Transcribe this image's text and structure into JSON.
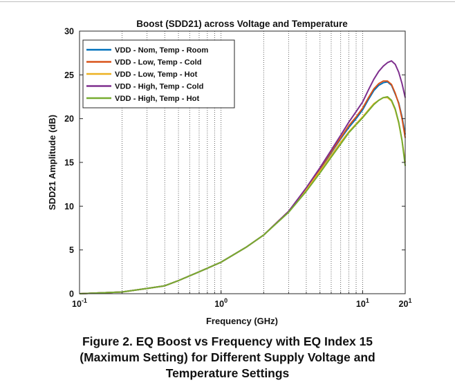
{
  "chart_data": {
    "type": "line",
    "title": "Boost (SDD21) across Voltage and Temperature",
    "xlabel": "Frequency (GHz)",
    "ylabel": "SDD21 Amplitude (dB)",
    "x_scale": "log",
    "xlim": [
      0.1,
      20
    ],
    "ylim": [
      0,
      30
    ],
    "grid": "x-minor-dotted",
    "legend_position": "top-left",
    "x_ticks": [
      {
        "base": "10",
        "exp": "-1"
      },
      {
        "base": "10",
        "exp": "0"
      },
      {
        "base": "10",
        "exp": "1"
      },
      {
        "base": "20",
        "exp": "1"
      }
    ],
    "y_ticks": [
      "0",
      "5",
      "10",
      "15",
      "20",
      "25",
      "30"
    ],
    "series": [
      {
        "name": "VDD - Nom, Temp - Room",
        "color": "#0072BD",
        "x": [
          0.1,
          0.2,
          0.3,
          0.4,
          0.5,
          0.7,
          1,
          1.5,
          2,
          3,
          4,
          5,
          6,
          7,
          8,
          9,
          10,
          11,
          12,
          13,
          14,
          15,
          16,
          17,
          18,
          19,
          20
        ],
        "y": [
          0.0,
          0.2,
          0.6,
          0.9,
          1.5,
          2.5,
          3.6,
          5.3,
          6.7,
          9.4,
          12.0,
          14.2,
          16.1,
          17.7,
          19.0,
          20.0,
          21.0,
          22.2,
          23.2,
          23.8,
          24.1,
          24.2,
          23.8,
          22.8,
          21.8,
          20.2,
          18.2
        ]
      },
      {
        "name": "VDD - Low, Temp - Cold",
        "color": "#D95319",
        "x": [
          0.1,
          0.2,
          0.3,
          0.4,
          0.5,
          0.7,
          1,
          1.5,
          2,
          3,
          4,
          5,
          6,
          7,
          8,
          9,
          10,
          11,
          12,
          13,
          14,
          15,
          16,
          17,
          18,
          19,
          20
        ],
        "y": [
          0.0,
          0.2,
          0.6,
          0.9,
          1.5,
          2.5,
          3.6,
          5.3,
          6.7,
          9.4,
          12.0,
          14.3,
          16.2,
          17.8,
          19.2,
          20.2,
          21.2,
          22.4,
          23.4,
          24.0,
          24.3,
          24.3,
          23.9,
          22.9,
          21.7,
          20.0,
          17.8
        ]
      },
      {
        "name": "VDD - Low, Temp - Hot",
        "color": "#EDB120",
        "x": [
          0.1,
          0.2,
          0.3,
          0.4,
          0.5,
          0.7,
          1,
          1.5,
          2,
          3,
          4,
          5,
          6,
          7,
          8,
          9,
          10,
          11,
          12,
          13,
          14,
          15,
          16,
          17,
          18,
          19,
          20
        ],
        "y": [
          0.0,
          0.2,
          0.6,
          0.9,
          1.5,
          2.5,
          3.6,
          5.3,
          6.7,
          9.4,
          11.9,
          14.0,
          15.8,
          17.3,
          18.5,
          19.4,
          20.2,
          21.0,
          21.7,
          22.1,
          22.4,
          22.4,
          22.0,
          21.0,
          19.5,
          17.5,
          15.0
        ]
      },
      {
        "name": "VDD - High, Temp - Cold",
        "color": "#7E2F8E",
        "x": [
          0.1,
          0.2,
          0.3,
          0.4,
          0.5,
          0.7,
          1,
          1.5,
          2,
          3,
          4,
          5,
          6,
          7,
          8,
          9,
          10,
          11,
          12,
          13,
          14,
          15,
          16,
          17,
          18,
          19,
          20
        ],
        "y": [
          0.0,
          0.2,
          0.6,
          0.9,
          1.5,
          2.5,
          3.6,
          5.3,
          6.7,
          9.4,
          12.1,
          14.4,
          16.4,
          18.1,
          19.6,
          20.8,
          21.9,
          23.3,
          24.5,
          25.4,
          26.0,
          26.4,
          26.6,
          26.2,
          25.3,
          24.0,
          22.4
        ]
      },
      {
        "name": "VDD - High, Temp - Hot",
        "color": "#77AC30",
        "x": [
          0.1,
          0.2,
          0.3,
          0.4,
          0.5,
          0.7,
          1,
          1.5,
          2,
          3,
          4,
          5,
          6,
          7,
          8,
          9,
          10,
          11,
          12,
          13,
          14,
          15,
          16,
          17,
          18,
          19,
          20
        ],
        "y": [
          0.0,
          0.2,
          0.6,
          0.9,
          1.5,
          2.5,
          3.6,
          5.3,
          6.7,
          9.3,
          11.7,
          13.8,
          15.6,
          17.1,
          18.4,
          19.3,
          20.1,
          20.9,
          21.6,
          22.1,
          22.4,
          22.5,
          22.1,
          21.1,
          19.6,
          17.5,
          14.6
        ]
      }
    ]
  },
  "caption": {
    "lines": [
      "Figure 2. EQ Boost vs Frequency with EQ Index 15",
      "(Maximum Setting) for Different Supply Voltage and",
      "Temperature Settings"
    ]
  }
}
